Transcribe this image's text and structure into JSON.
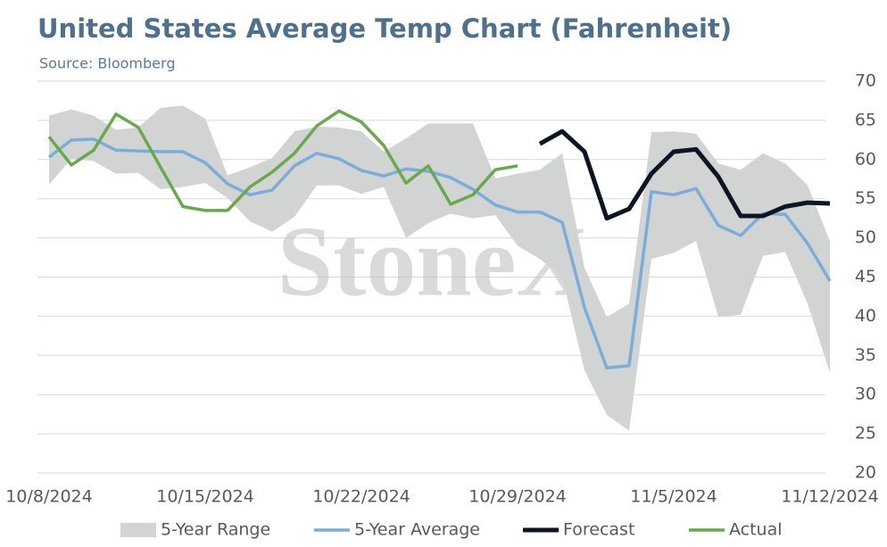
{
  "chart_data": {
    "type": "line",
    "title": "United States Average Temp Chart (Fahrenheit)",
    "subtitle": "Source: Bloomberg",
    "watermark": "StoneX",
    "categories": [
      "10/8/2024",
      null,
      null,
      null,
      null,
      null,
      null,
      "10/15/2024",
      null,
      null,
      null,
      null,
      null,
      null,
      "10/22/2024",
      null,
      null,
      null,
      null,
      null,
      null,
      "10/29/2024",
      null,
      null,
      null,
      null,
      null,
      null,
      "11/5/2024",
      null,
      null,
      null,
      null,
      null,
      null,
      "11/12/2024"
    ],
    "ylim": [
      20,
      70
    ],
    "yticks": [
      20,
      25,
      30,
      35,
      40,
      45,
      50,
      55,
      60,
      65,
      70
    ],
    "grid": true,
    "legend": "bottom",
    "series": [
      {
        "name": "5-Year Range",
        "color": "#d2d3d3",
        "kind": "band",
        "upper": [
          65.6,
          66.4,
          65.6,
          63.8,
          64.1,
          66.6,
          66.9,
          65.2,
          58.0,
          59.0,
          60.2,
          63.6,
          64.2,
          64.1,
          63.6,
          61.0,
          62.7,
          64.6,
          64.6,
          64.6,
          57.6,
          58.2,
          58.7,
          60.8,
          46.2,
          39.9,
          41.6,
          63.5,
          63.6,
          63.3,
          59.5,
          58.7,
          60.8,
          59.5,
          56.7,
          49.6
        ],
        "lower": [
          56.8,
          60.1,
          59.8,
          58.2,
          58.3,
          56.2,
          56.5,
          57.0,
          55.1,
          52.1,
          50.8,
          52.7,
          56.7,
          56.7,
          55.6,
          56.5,
          50.0,
          51.9,
          53.1,
          52.5,
          52.9,
          49.0,
          47.3,
          45.0,
          33.1,
          27.4,
          25.4,
          47.3,
          48.1,
          49.6,
          39.9,
          40.2,
          47.7,
          48.2,
          41.6,
          32.8
        ]
      },
      {
        "name": "5-Year Average",
        "color": "#7badd9",
        "values": [
          60.3,
          62.5,
          62.6,
          61.2,
          61.1,
          61.0,
          61.0,
          59.6,
          56.9,
          55.5,
          56.1,
          59.2,
          60.8,
          60.1,
          58.6,
          57.9,
          58.8,
          58.5,
          57.7,
          56.2,
          54.2,
          53.3,
          53.3,
          52.0,
          41.1,
          33.4,
          33.7,
          55.9,
          55.5,
          56.3,
          51.6,
          50.3,
          53.1,
          53.0,
          49.3,
          44.5
        ]
      },
      {
        "name": "Forecast",
        "color": "#0d1522",
        "values": [
          null,
          null,
          null,
          null,
          null,
          null,
          null,
          null,
          null,
          null,
          null,
          null,
          null,
          null,
          null,
          null,
          null,
          null,
          null,
          null,
          null,
          null,
          62.0,
          63.6,
          61.0,
          52.5,
          53.7,
          58.2,
          61.0,
          61.3,
          57.8,
          52.8,
          52.8,
          54.0,
          54.5,
          54.4
        ]
      },
      {
        "name": "Actual",
        "color": "#6aa84f",
        "values": [
          62.9,
          59.3,
          61.2,
          65.8,
          64.1,
          59.0,
          54.0,
          53.5,
          53.5,
          56.5,
          58.4,
          60.8,
          64.3,
          66.2,
          64.8,
          61.8,
          57.0,
          59.2,
          54.3,
          55.5,
          58.7,
          59.2,
          null,
          null,
          null,
          null,
          null,
          null,
          null,
          null,
          null,
          null,
          null,
          null,
          null,
          null
        ]
      }
    ]
  }
}
